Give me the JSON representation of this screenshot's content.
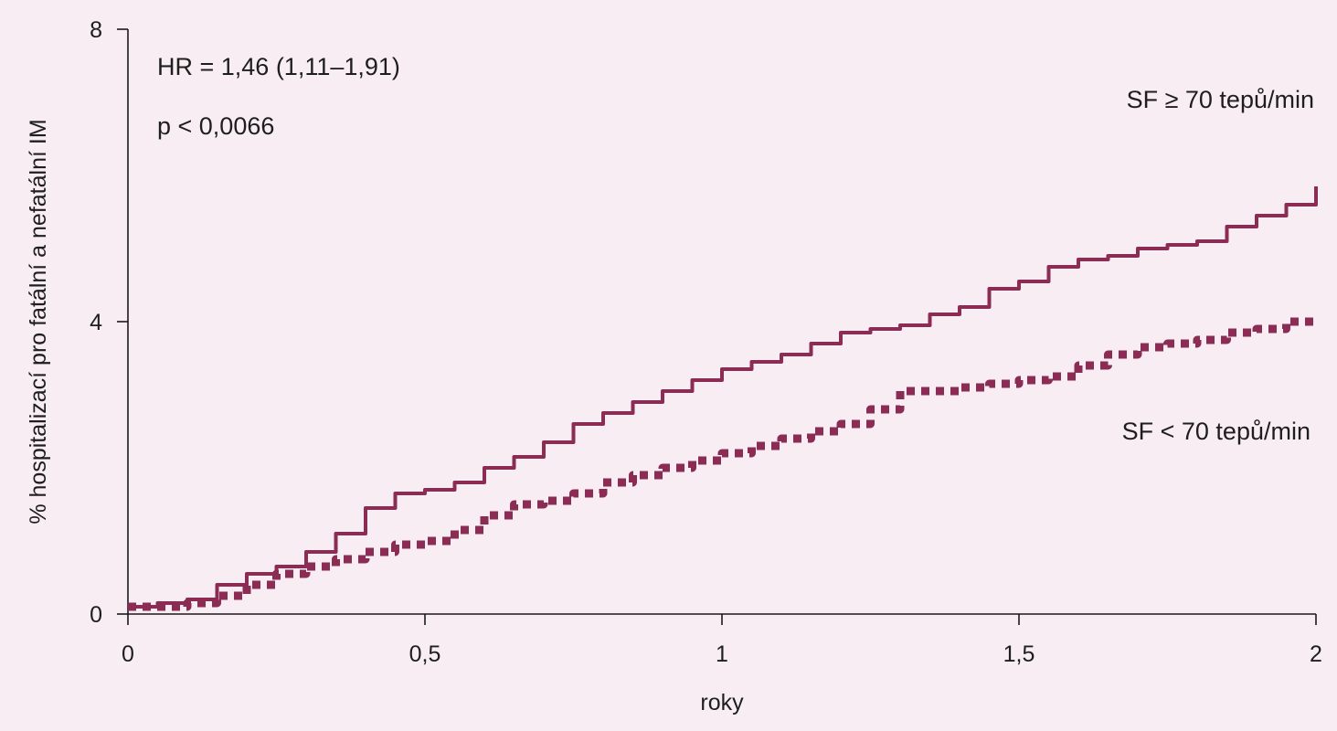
{
  "chart_data": {
    "type": "line",
    "title": "",
    "xlabel": "roky",
    "ylabel": "% hospitalizací pro fatální a nefatální IM",
    "xlim": [
      0,
      2
    ],
    "ylim": [
      0,
      8
    ],
    "x_ticks": [
      0,
      0.5,
      1,
      1.5,
      2
    ],
    "x_tick_labels": [
      "0",
      "0,5",
      "1",
      "1,5",
      "2"
    ],
    "y_ticks": [
      0,
      4,
      8
    ],
    "y_tick_labels": [
      "0",
      "4",
      "8"
    ],
    "grid": false,
    "legend": "none",
    "annotations": {
      "hr": "HR = 1,46 (1,11–1,91)",
      "p": "p < 0,0066"
    },
    "series": [
      {
        "name": "SF ≥ 70 tepů/min",
        "style": "solid",
        "color": "#8b2c55",
        "x": [
          0,
          0.05,
          0.1,
          0.15,
          0.2,
          0.25,
          0.3,
          0.35,
          0.4,
          0.45,
          0.5,
          0.55,
          0.6,
          0.65,
          0.7,
          0.75,
          0.8,
          0.85,
          0.9,
          0.95,
          1.0,
          1.05,
          1.1,
          1.15,
          1.2,
          1.25,
          1.3,
          1.35,
          1.4,
          1.45,
          1.5,
          1.55,
          1.6,
          1.65,
          1.7,
          1.75,
          1.8,
          1.85,
          1.9,
          1.95,
          2.0
        ],
        "y": [
          0.1,
          0.15,
          0.2,
          0.4,
          0.55,
          0.65,
          0.85,
          1.1,
          1.45,
          1.65,
          1.7,
          1.8,
          2.0,
          2.15,
          2.35,
          2.6,
          2.75,
          2.9,
          3.05,
          3.2,
          3.35,
          3.45,
          3.55,
          3.7,
          3.85,
          3.9,
          3.95,
          4.1,
          4.2,
          4.45,
          4.55,
          4.75,
          4.85,
          4.9,
          5.0,
          5.05,
          5.1,
          5.3,
          5.45,
          5.6,
          5.85
        ]
      },
      {
        "name": "SF < 70 tepů/min",
        "style": "dotted",
        "color": "#8b2c55",
        "x": [
          0,
          0.05,
          0.1,
          0.15,
          0.2,
          0.25,
          0.3,
          0.35,
          0.4,
          0.45,
          0.5,
          0.55,
          0.6,
          0.65,
          0.7,
          0.75,
          0.8,
          0.85,
          0.9,
          0.95,
          1.0,
          1.05,
          1.1,
          1.15,
          1.2,
          1.25,
          1.3,
          1.35,
          1.4,
          1.45,
          1.5,
          1.55,
          1.6,
          1.65,
          1.7,
          1.75,
          1.8,
          1.85,
          1.9,
          1.95,
          2.0
        ],
        "y": [
          0.1,
          0.1,
          0.15,
          0.25,
          0.4,
          0.55,
          0.65,
          0.75,
          0.85,
          0.95,
          1.0,
          1.15,
          1.35,
          1.5,
          1.55,
          1.65,
          1.8,
          1.9,
          2.0,
          2.1,
          2.2,
          2.3,
          2.4,
          2.5,
          2.6,
          2.8,
          3.05,
          3.05,
          3.1,
          3.15,
          3.2,
          3.25,
          3.4,
          3.55,
          3.65,
          3.7,
          3.75,
          3.85,
          3.9,
          4.0,
          4.05
        ]
      }
    ]
  }
}
